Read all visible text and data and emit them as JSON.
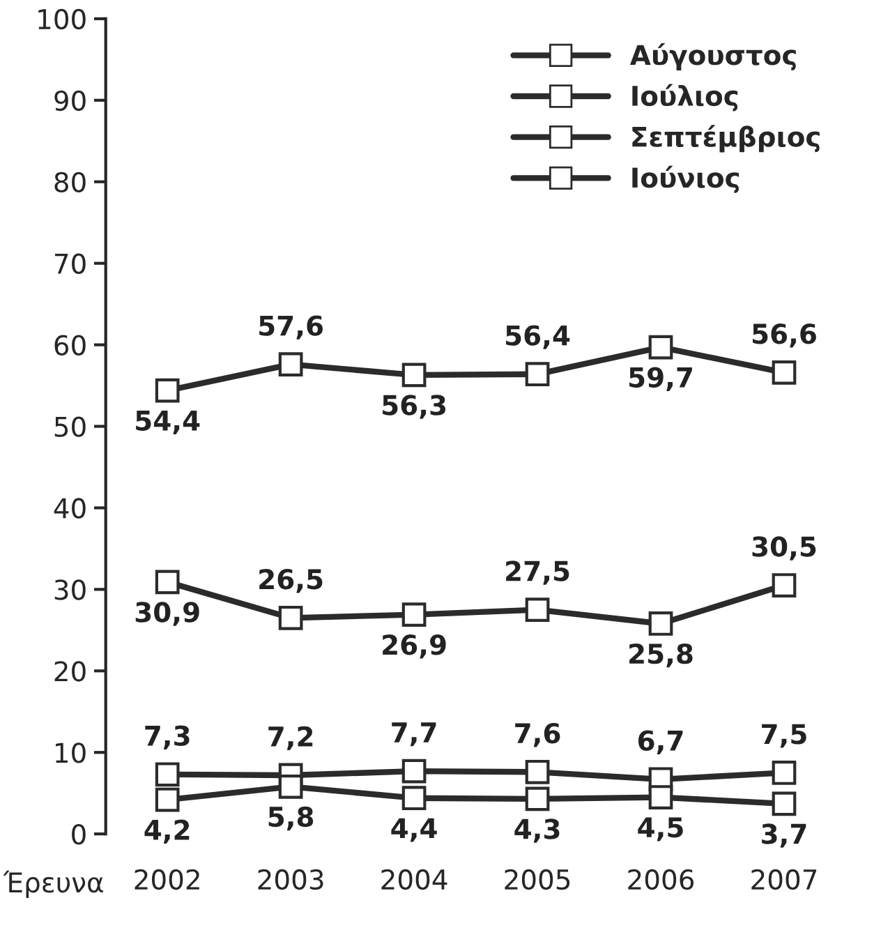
{
  "chart_data": {
    "type": "line",
    "xlabel": "Έρευνα",
    "categories": [
      "2002",
      "2003",
      "2004",
      "2005",
      "2006",
      "2007"
    ],
    "series": [
      {
        "name": "Αύγουστος",
        "color": "#2b2b2b",
        "values": [
          54.4,
          57.6,
          56.3,
          56.4,
          59.7,
          56.6
        ],
        "value_labels": [
          "54,4",
          "57,6",
          "56,3",
          "56,4",
          "59,7",
          "56,6"
        ]
      },
      {
        "name": "Ιούλιος",
        "color": "#2b2b2b",
        "values": [
          30.9,
          26.5,
          26.9,
          27.5,
          25.8,
          30.5
        ],
        "value_labels": [
          "30,9",
          "26,5",
          "26,9",
          "27,5",
          "25,8",
          "30,5"
        ]
      },
      {
        "name": "Σεπτέμβριος",
        "color": "#2b2b2b",
        "values": [
          7.3,
          7.2,
          7.7,
          7.6,
          6.7,
          7.5
        ],
        "value_labels": [
          "7,3",
          "7,2",
          "7,7",
          "7,6",
          "6,7",
          "7,5"
        ]
      },
      {
        "name": "Ιούνιος",
        "color": "#2b2b2b",
        "values": [
          4.2,
          5.8,
          4.4,
          4.3,
          4.5,
          3.7
        ],
        "value_labels": [
          "4,2",
          "5,8",
          "4,4",
          "4,3",
          "4,5",
          "3,7"
        ]
      }
    ],
    "ylim": [
      0,
      100
    ],
    "yticks": [
      0,
      10,
      20,
      30,
      40,
      50,
      60,
      70,
      80,
      90,
      100
    ],
    "grid": false,
    "legend": "top right",
    "marker": "square",
    "line_style": "solid"
  }
}
